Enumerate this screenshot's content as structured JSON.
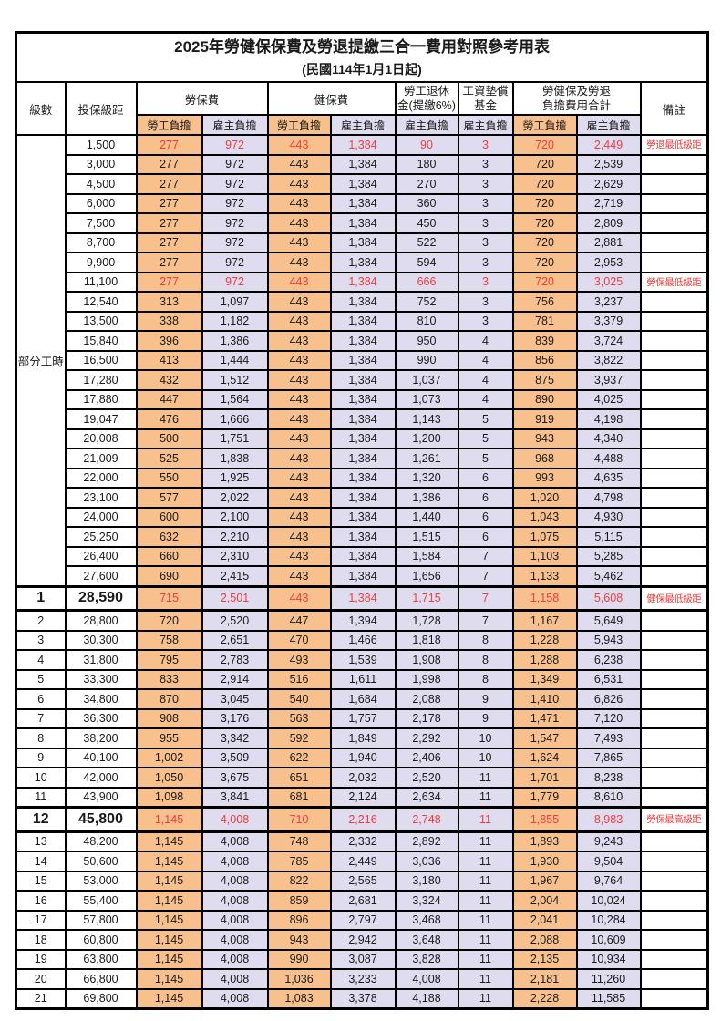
{
  "title": "2025年勞健保保費及勞退提繳三合一費用對照參考用表",
  "subtitle": "(民國114年1月1日起)",
  "header": {
    "level": "級數",
    "bracket": "投保級距",
    "labor_fee": "勞保費",
    "health_fee": "健保費",
    "pension_line1": "勞工退休",
    "pension_line2": "金(提繳6%)",
    "wage_fund_line1": "工資墊償",
    "wage_fund_line2": "基金",
    "total_line1": "勞健保及勞退",
    "total_line2": "負擔費用合計",
    "remark": "備註",
    "employee": "勞工負擔",
    "employer": "雇主負擔"
  },
  "part_time": {
    "label": "部分工時",
    "row_span": 23
  },
  "colors": {
    "employee_bg": "#F8C08C",
    "employer_bg": "#DFDCEF",
    "highlight_text": "#F03C3C",
    "border": "#000000"
  },
  "rows": [
    {
      "level": "",
      "bracket": "1,500",
      "v": [
        "277",
        "972",
        "443",
        "1,384",
        "90",
        "3",
        "720",
        "2,449"
      ],
      "remark": "勞退最低級距",
      "red": true,
      "big": false
    },
    {
      "level": "",
      "bracket": "3,000",
      "v": [
        "277",
        "972",
        "443",
        "1,384",
        "180",
        "3",
        "720",
        "2,539"
      ],
      "remark": "",
      "red": false,
      "big": false
    },
    {
      "level": "",
      "bracket": "4,500",
      "v": [
        "277",
        "972",
        "443",
        "1,384",
        "270",
        "3",
        "720",
        "2,629"
      ],
      "remark": "",
      "red": false,
      "big": false
    },
    {
      "level": "",
      "bracket": "6,000",
      "v": [
        "277",
        "972",
        "443",
        "1,384",
        "360",
        "3",
        "720",
        "2,719"
      ],
      "remark": "",
      "red": false,
      "big": false
    },
    {
      "level": "",
      "bracket": "7,500",
      "v": [
        "277",
        "972",
        "443",
        "1,384",
        "450",
        "3",
        "720",
        "2,809"
      ],
      "remark": "",
      "red": false,
      "big": false
    },
    {
      "level": "",
      "bracket": "8,700",
      "v": [
        "277",
        "972",
        "443",
        "1,384",
        "522",
        "3",
        "720",
        "2,881"
      ],
      "remark": "",
      "red": false,
      "big": false
    },
    {
      "level": "",
      "bracket": "9,900",
      "v": [
        "277",
        "972",
        "443",
        "1,384",
        "594",
        "3",
        "720",
        "2,953"
      ],
      "remark": "",
      "red": false,
      "big": false
    },
    {
      "level": "",
      "bracket": "11,100",
      "v": [
        "277",
        "972",
        "443",
        "1,384",
        "666",
        "3",
        "720",
        "3,025"
      ],
      "remark": "勞保最低級距",
      "red": true,
      "big": false
    },
    {
      "level": "",
      "bracket": "12,540",
      "v": [
        "313",
        "1,097",
        "443",
        "1,384",
        "752",
        "3",
        "756",
        "3,237"
      ],
      "remark": "",
      "red": false,
      "big": false
    },
    {
      "level": "",
      "bracket": "13,500",
      "v": [
        "338",
        "1,182",
        "443",
        "1,384",
        "810",
        "3",
        "781",
        "3,379"
      ],
      "remark": "",
      "red": false,
      "big": false
    },
    {
      "level": "",
      "bracket": "15,840",
      "v": [
        "396",
        "1,386",
        "443",
        "1,384",
        "950",
        "4",
        "839",
        "3,724"
      ],
      "remark": "",
      "red": false,
      "big": false
    },
    {
      "level": "",
      "bracket": "16,500",
      "v": [
        "413",
        "1,444",
        "443",
        "1,384",
        "990",
        "4",
        "856",
        "3,822"
      ],
      "remark": "",
      "red": false,
      "big": false
    },
    {
      "level": "",
      "bracket": "17,280",
      "v": [
        "432",
        "1,512",
        "443",
        "1,384",
        "1,037",
        "4",
        "875",
        "3,937"
      ],
      "remark": "",
      "red": false,
      "big": false
    },
    {
      "level": "",
      "bracket": "17,880",
      "v": [
        "447",
        "1,564",
        "443",
        "1,384",
        "1,073",
        "4",
        "890",
        "4,025"
      ],
      "remark": "",
      "red": false,
      "big": false
    },
    {
      "level": "",
      "bracket": "19,047",
      "v": [
        "476",
        "1,666",
        "443",
        "1,384",
        "1,143",
        "5",
        "919",
        "4,198"
      ],
      "remark": "",
      "red": false,
      "big": false
    },
    {
      "level": "",
      "bracket": "20,008",
      "v": [
        "500",
        "1,751",
        "443",
        "1,384",
        "1,200",
        "5",
        "943",
        "4,340"
      ],
      "remark": "",
      "red": false,
      "big": false
    },
    {
      "level": "",
      "bracket": "21,009",
      "v": [
        "525",
        "1,838",
        "443",
        "1,384",
        "1,261",
        "5",
        "968",
        "4,488"
      ],
      "remark": "",
      "red": false,
      "big": false
    },
    {
      "level": "",
      "bracket": "22,000",
      "v": [
        "550",
        "1,925",
        "443",
        "1,384",
        "1,320",
        "6",
        "993",
        "4,635"
      ],
      "remark": "",
      "red": false,
      "big": false
    },
    {
      "level": "",
      "bracket": "23,100",
      "v": [
        "577",
        "2,022",
        "443",
        "1,384",
        "1,386",
        "6",
        "1,020",
        "4,798"
      ],
      "remark": "",
      "red": false,
      "big": false
    },
    {
      "level": "",
      "bracket": "24,000",
      "v": [
        "600",
        "2,100",
        "443",
        "1,384",
        "1,440",
        "6",
        "1,043",
        "4,930"
      ],
      "remark": "",
      "red": false,
      "big": false
    },
    {
      "level": "",
      "bracket": "25,250",
      "v": [
        "632",
        "2,210",
        "443",
        "1,384",
        "1,515",
        "6",
        "1,075",
        "5,115"
      ],
      "remark": "",
      "red": false,
      "big": false
    },
    {
      "level": "",
      "bracket": "26,400",
      "v": [
        "660",
        "2,310",
        "443",
        "1,384",
        "1,584",
        "7",
        "1,103",
        "5,285"
      ],
      "remark": "",
      "red": false,
      "big": false
    },
    {
      "level": "",
      "bracket": "27,600",
      "v": [
        "690",
        "2,415",
        "443",
        "1,384",
        "1,656",
        "7",
        "1,133",
        "5,462"
      ],
      "remark": "",
      "red": false,
      "big": false
    },
    {
      "level": "1",
      "bracket": "28,590",
      "v": [
        "715",
        "2,501",
        "443",
        "1,384",
        "1,715",
        "7",
        "1,158",
        "5,608"
      ],
      "remark": "健保最低級距",
      "red": true,
      "big": true
    },
    {
      "level": "2",
      "bracket": "28,800",
      "v": [
        "720",
        "2,520",
        "447",
        "1,394",
        "1,728",
        "7",
        "1,167",
        "5,649"
      ],
      "remark": "",
      "red": false,
      "big": false
    },
    {
      "level": "3",
      "bracket": "30,300",
      "v": [
        "758",
        "2,651",
        "470",
        "1,466",
        "1,818",
        "8",
        "1,228",
        "5,943"
      ],
      "remark": "",
      "red": false,
      "big": false
    },
    {
      "level": "4",
      "bracket": "31,800",
      "v": [
        "795",
        "2,783",
        "493",
        "1,539",
        "1,908",
        "8",
        "1,288",
        "6,238"
      ],
      "remark": "",
      "red": false,
      "big": false
    },
    {
      "level": "5",
      "bracket": "33,300",
      "v": [
        "833",
        "2,914",
        "516",
        "1,611",
        "1,998",
        "8",
        "1,349",
        "6,531"
      ],
      "remark": "",
      "red": false,
      "big": false
    },
    {
      "level": "6",
      "bracket": "34,800",
      "v": [
        "870",
        "3,045",
        "540",
        "1,684",
        "2,088",
        "9",
        "1,410",
        "6,826"
      ],
      "remark": "",
      "red": false,
      "big": false
    },
    {
      "level": "7",
      "bracket": "36,300",
      "v": [
        "908",
        "3,176",
        "563",
        "1,757",
        "2,178",
        "9",
        "1,471",
        "7,120"
      ],
      "remark": "",
      "red": false,
      "big": false
    },
    {
      "level": "8",
      "bracket": "38,200",
      "v": [
        "955",
        "3,342",
        "592",
        "1,849",
        "2,292",
        "10",
        "1,547",
        "7,493"
      ],
      "remark": "",
      "red": false,
      "big": false
    },
    {
      "level": "9",
      "bracket": "40,100",
      "v": [
        "1,002",
        "3,509",
        "622",
        "1,940",
        "2,406",
        "10",
        "1,624",
        "7,865"
      ],
      "remark": "",
      "red": false,
      "big": false
    },
    {
      "level": "10",
      "bracket": "42,000",
      "v": [
        "1,050",
        "3,675",
        "651",
        "2,032",
        "2,520",
        "11",
        "1,701",
        "8,238"
      ],
      "remark": "",
      "red": false,
      "big": false
    },
    {
      "level": "11",
      "bracket": "43,900",
      "v": [
        "1,098",
        "3,841",
        "681",
        "2,124",
        "2,634",
        "11",
        "1,779",
        "8,610"
      ],
      "remark": "",
      "red": false,
      "big": false
    },
    {
      "level": "12",
      "bracket": "45,800",
      "v": [
        "1,145",
        "4,008",
        "710",
        "2,216",
        "2,748",
        "11",
        "1,855",
        "8,983"
      ],
      "remark": "勞保最高級距",
      "red": true,
      "big": true
    },
    {
      "level": "13",
      "bracket": "48,200",
      "v": [
        "1,145",
        "4,008",
        "748",
        "2,332",
        "2,892",
        "11",
        "1,893",
        "9,243"
      ],
      "remark": "",
      "red": false,
      "big": false
    },
    {
      "level": "14",
      "bracket": "50,600",
      "v": [
        "1,145",
        "4,008",
        "785",
        "2,449",
        "3,036",
        "11",
        "1,930",
        "9,504"
      ],
      "remark": "",
      "red": false,
      "big": false
    },
    {
      "level": "15",
      "bracket": "53,000",
      "v": [
        "1,145",
        "4,008",
        "822",
        "2,565",
        "3,180",
        "11",
        "1,967",
        "9,764"
      ],
      "remark": "",
      "red": false,
      "big": false
    },
    {
      "level": "16",
      "bracket": "55,400",
      "v": [
        "1,145",
        "4,008",
        "859",
        "2,681",
        "3,324",
        "11",
        "2,004",
        "10,024"
      ],
      "remark": "",
      "red": false,
      "big": false
    },
    {
      "level": "17",
      "bracket": "57,800",
      "v": [
        "1,145",
        "4,008",
        "896",
        "2,797",
        "3,468",
        "11",
        "2,041",
        "10,284"
      ],
      "remark": "",
      "red": false,
      "big": false
    },
    {
      "level": "18",
      "bracket": "60,800",
      "v": [
        "1,145",
        "4,008",
        "943",
        "2,942",
        "3,648",
        "11",
        "2,088",
        "10,609"
      ],
      "remark": "",
      "red": false,
      "big": false
    },
    {
      "level": "19",
      "bracket": "63,800",
      "v": [
        "1,145",
        "4,008",
        "990",
        "3,087",
        "3,828",
        "11",
        "2,135",
        "10,934"
      ],
      "remark": "",
      "red": false,
      "big": false
    },
    {
      "level": "20",
      "bracket": "66,800",
      "v": [
        "1,145",
        "4,008",
        "1,036",
        "3,233",
        "4,008",
        "11",
        "2,181",
        "11,260"
      ],
      "remark": "",
      "red": false,
      "big": false
    },
    {
      "level": "21",
      "bracket": "69,800",
      "v": [
        "1,145",
        "4,008",
        "1,083",
        "3,378",
        "4,188",
        "11",
        "2,228",
        "11,585"
      ],
      "remark": "",
      "red": false,
      "big": false
    }
  ]
}
